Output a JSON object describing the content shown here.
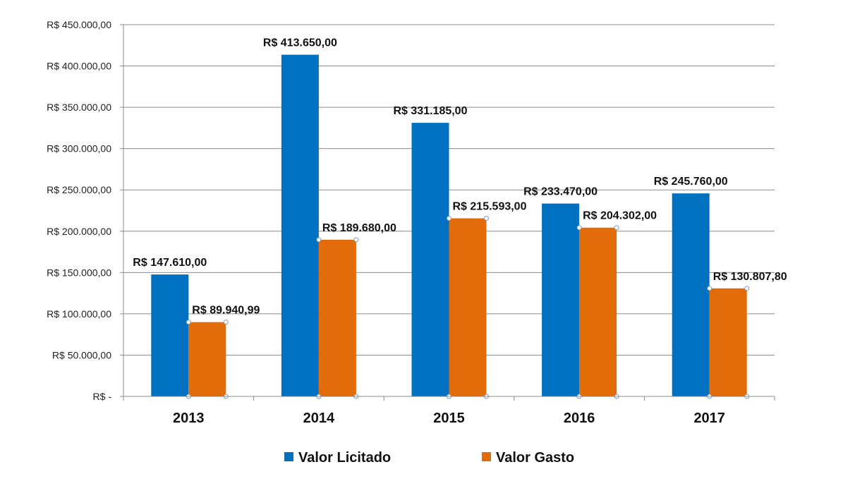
{
  "chart_data": {
    "type": "bar",
    "categories": [
      "2013",
      "2014",
      "2015",
      "2016",
      "2017"
    ],
    "series": [
      {
        "name": "Valor Licitado",
        "color": "#0070C0",
        "values": [
          147610.0,
          413650.0,
          331185.0,
          233470.0,
          245760.0
        ],
        "labels": [
          "R$ 147.610,00",
          "R$ 413.650,00",
          "R$ 331.185,00",
          "R$ 233.470,00",
          "R$ 245.760,00"
        ]
      },
      {
        "name": "Valor Gasto",
        "color": "#E36C0A",
        "values": [
          89940.99,
          189680.0,
          215593.0,
          204302.0,
          130807.8
        ],
        "labels": [
          "R$ 89.940,99",
          "R$ 189.680,00",
          "R$ 215.593,00",
          "R$ 204.302,00",
          "R$ 130.807,80"
        ]
      }
    ],
    "ylim": [
      0,
      450000
    ],
    "yticks": [
      0,
      50000,
      100000,
      150000,
      200000,
      250000,
      300000,
      350000,
      400000,
      450000
    ],
    "ytick_labels": [
      "R$ -",
      "R$ 50.000,00",
      "R$ 100.000,00",
      "R$ 150.000,00",
      "R$ 200.000,00",
      "R$ 250.000,00",
      "R$ 300.000,00",
      "R$ 350.000,00",
      "R$ 400.000,00",
      "R$ 450.000,00"
    ],
    "grid": true,
    "legend_position": "bottom",
    "title": "",
    "xlabel": "",
    "ylabel": ""
  }
}
